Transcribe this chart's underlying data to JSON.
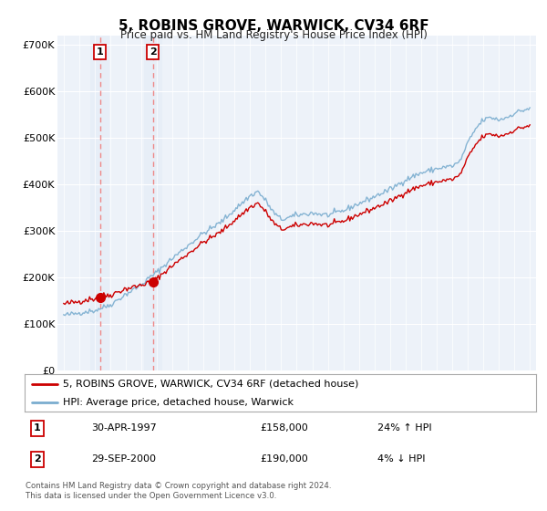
{
  "title": "5, ROBINS GROVE, WARWICK, CV34 6RF",
  "subtitle": "Price paid vs. HM Land Registry's House Price Index (HPI)",
  "ylim": [
    0,
    720000
  ],
  "yticks": [
    0,
    100000,
    200000,
    300000,
    400000,
    500000,
    600000,
    700000
  ],
  "ytick_labels": [
    "£0",
    "£100K",
    "£200K",
    "£300K",
    "£400K",
    "£500K",
    "£600K",
    "£700K"
  ],
  "xlim_start": 1994.6,
  "xlim_end": 2025.4,
  "transaction1": {
    "year": 1997.33,
    "price": 158000,
    "label": "1",
    "date": "30-APR-1997",
    "hpi_pct": "24%",
    "hpi_dir": "↑"
  },
  "transaction2": {
    "year": 2000.75,
    "price": 190000,
    "label": "2",
    "date": "29-SEP-2000",
    "hpi_pct": "4%",
    "hpi_dir": "↓"
  },
  "line_color_property": "#cc0000",
  "line_color_hpi": "#7aadcf",
  "marker_color": "#cc0000",
  "vline_color": "#ee8888",
  "highlight_color": "#dce8f5",
  "legend_entries": [
    "5, ROBINS GROVE, WARWICK, CV34 6RF (detached house)",
    "HPI: Average price, detached house, Warwick"
  ],
  "footer": "Contains HM Land Registry data © Crown copyright and database right 2024.\nThis data is licensed under the Open Government Licence v3.0.",
  "background_color": "#ffffff",
  "plot_bg_color": "#edf2f9"
}
